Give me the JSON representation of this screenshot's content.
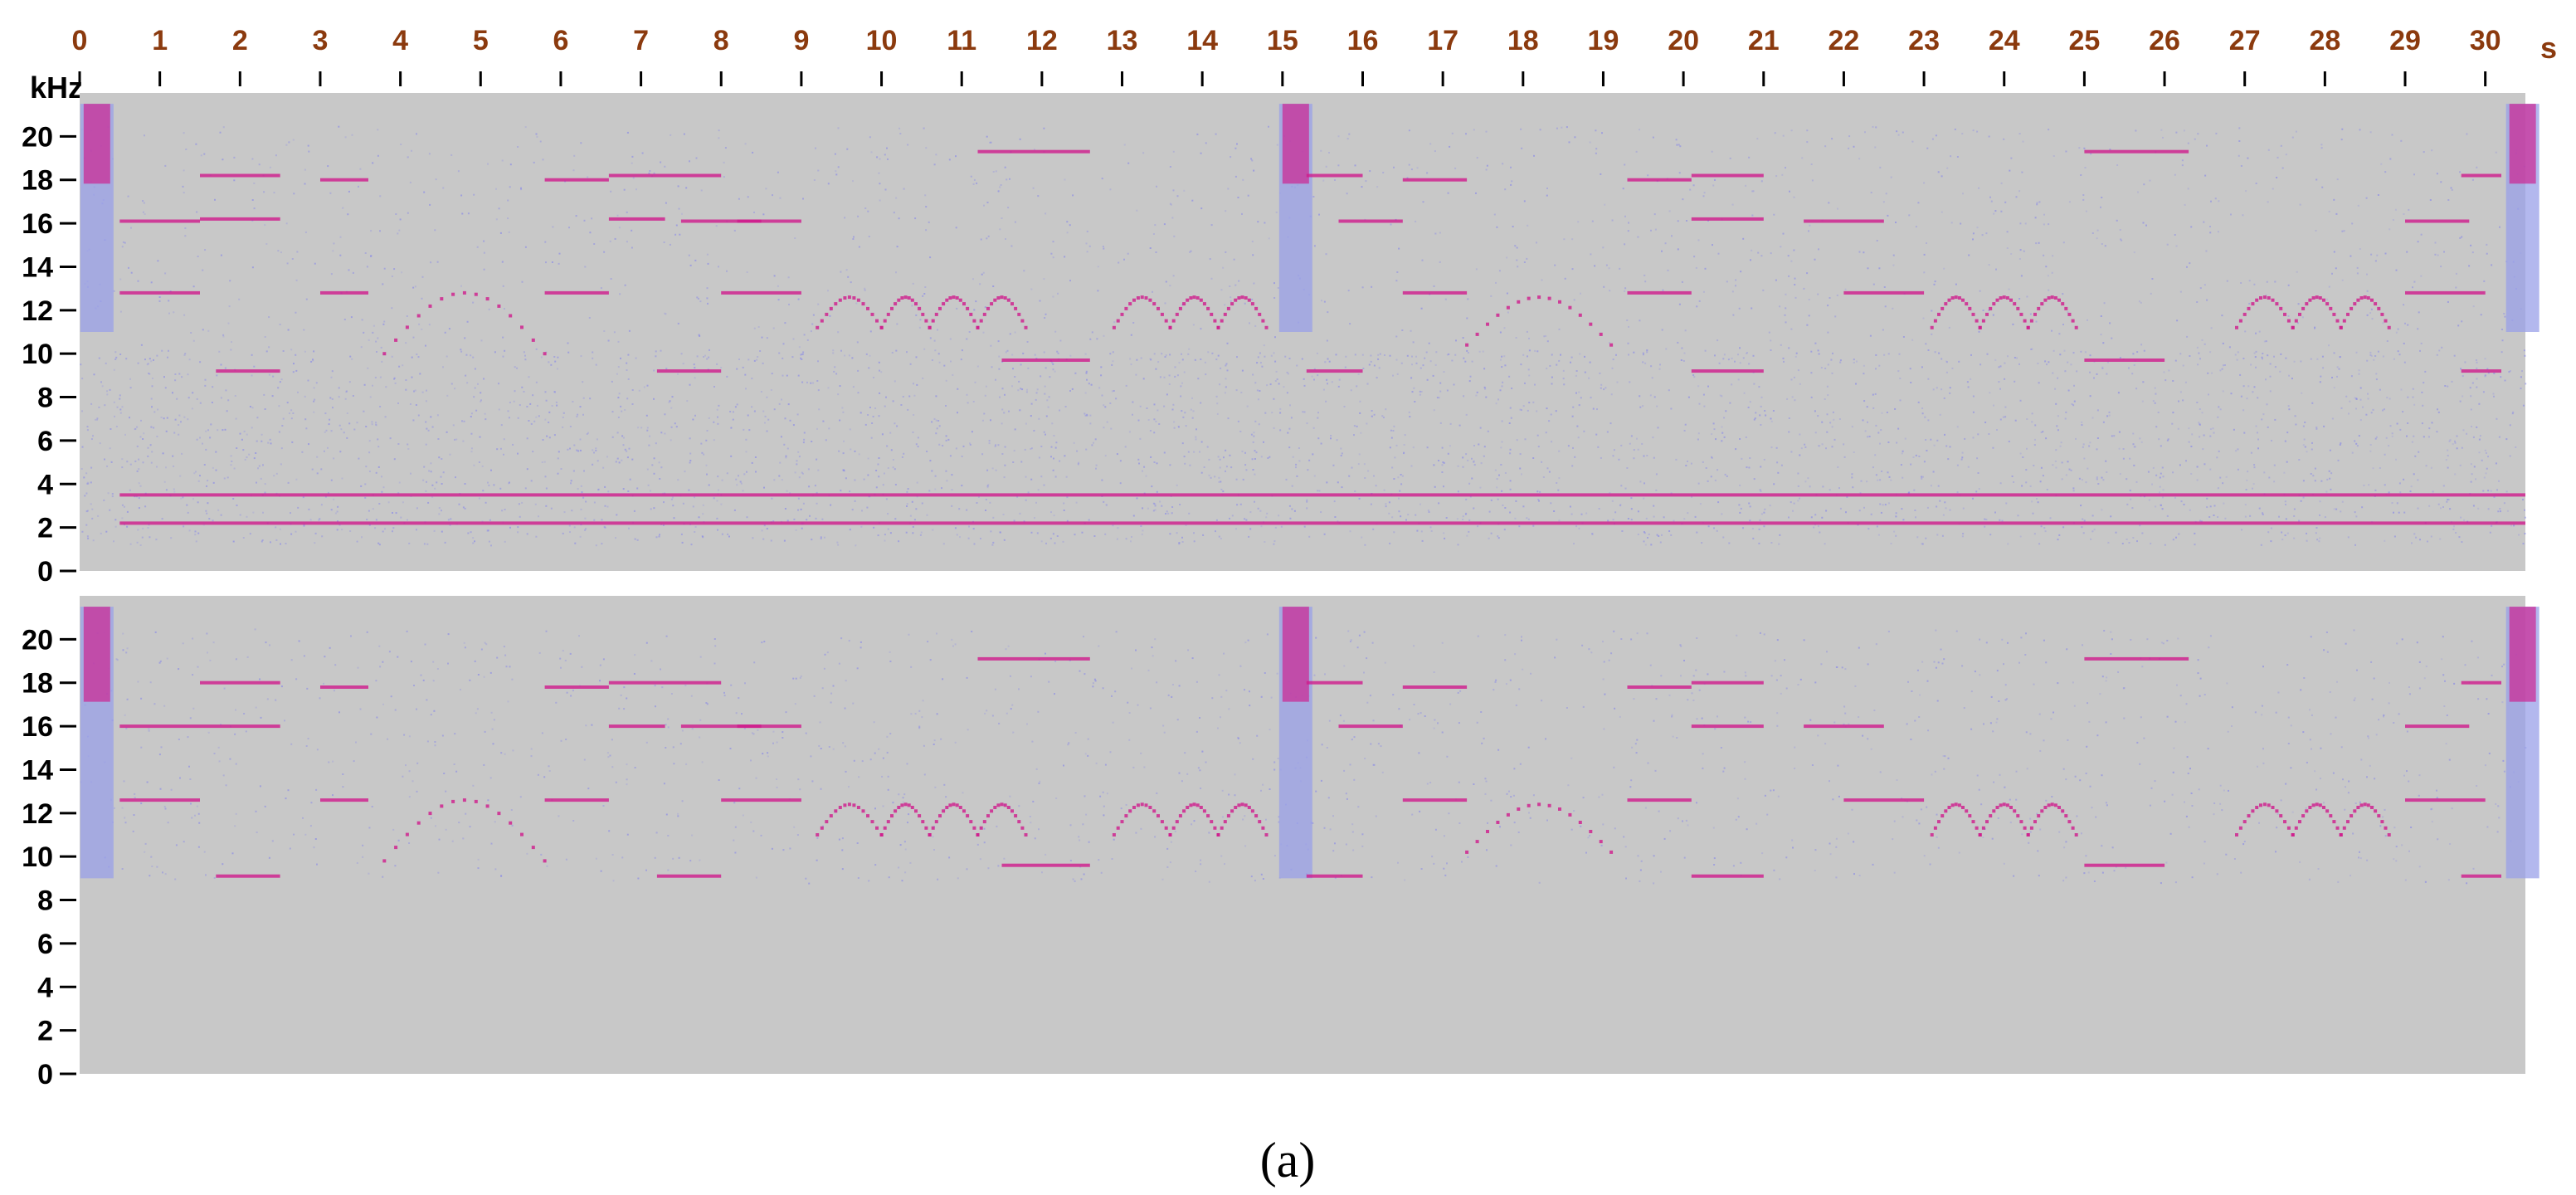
{
  "chart_data": {
    "type": "heatmap",
    "caption": "(a)",
    "x_axis": {
      "unit": "s",
      "range": [
        0,
        30.5
      ],
      "ticks": [
        0,
        1,
        2,
        3,
        4,
        5,
        6,
        7,
        8,
        9,
        10,
        11,
        12,
        13,
        14,
        15,
        16,
        17,
        18,
        19,
        20,
        21,
        22,
        23,
        24,
        25,
        26,
        27,
        28,
        29,
        30
      ],
      "color": "#8b3a0e"
    },
    "y_axis": {
      "unit": "kHz",
      "range": [
        0,
        22
      ],
      "ticks": [
        0,
        2,
        4,
        6,
        8,
        10,
        12,
        14,
        16,
        18,
        20
      ]
    },
    "colors": {
      "background": "#c8c8c8",
      "noise": "#8c8ce6",
      "tone": "#d01a8c"
    },
    "panels": [
      {
        "name": "",
        "noise_bands": [
          {
            "f": [
              9.5,
              20.5
            ],
            "density": 0.35
          },
          {
            "f": [
              1.2,
              10.2
            ],
            "density": 1.0
          }
        ],
        "broadband_pulses": [
          {
            "t": 0.05,
            "f": [
              11,
              21.5
            ]
          },
          {
            "t": 15.0,
            "f": [
              11,
              21.5
            ]
          },
          {
            "t": 30.3,
            "f": [
              11,
              21.5
            ]
          }
        ],
        "tones": [
          {
            "t": [
              0.5,
              1.5
            ],
            "f": 12.8
          },
          {
            "t": [
              0.5,
              1.5
            ],
            "f": 16.1
          },
          {
            "t": [
              1.5,
              2.5
            ],
            "f": 18.2
          },
          {
            "t": [
              1.5,
              2.5
            ],
            "f": 16.2
          },
          {
            "t": [
              1.7,
              2.5
            ],
            "f": 9.2
          },
          {
            "t": [
              3.0,
              3.6
            ],
            "f": 12.8
          },
          {
            "t": [
              3.0,
              3.6
            ],
            "f": 18.0
          },
          {
            "t": [
              5.8,
              6.6
            ],
            "f": 12.8
          },
          {
            "t": [
              5.8,
              6.6
            ],
            "f": 18.0
          },
          {
            "t": [
              6.6,
              7.3
            ],
            "f": 16.2
          },
          {
            "t": [
              6.6,
              8.0
            ],
            "f": 18.2
          },
          {
            "t": [
              7.2,
              8.0
            ],
            "f": 9.2
          },
          {
            "t": [
              7.5,
              8.5
            ],
            "f": 16.1
          },
          {
            "t": [
              8.0,
              9.0
            ],
            "f": 12.8
          },
          {
            "t": [
              8.2,
              9.0
            ],
            "f": 16.1
          },
          {
            "t": [
              11.2,
              12.6
            ],
            "f": 19.3
          },
          {
            "t": [
              11.5,
              12.6
            ],
            "f": 9.7
          },
          {
            "t": [
              15.3,
              16.0
            ],
            "f": 18.2
          },
          {
            "t": [
              15.3,
              16.0
            ],
            "f": 9.2
          },
          {
            "t": [
              15.7,
              16.5
            ],
            "f": 16.1
          },
          {
            "t": [
              16.5,
              17.3
            ],
            "f": 12.8
          },
          {
            "t": [
              16.5,
              17.3
            ],
            "f": 18.0
          },
          {
            "t": [
              19.3,
              20.1
            ],
            "f": 12.8
          },
          {
            "t": [
              19.3,
              20.1
            ],
            "f": 18.0
          },
          {
            "t": [
              20.1,
              21.0
            ],
            "f": 18.2
          },
          {
            "t": [
              20.1,
              21.0
            ],
            "f": 9.2
          },
          {
            "t": [
              20.1,
              21.0
            ],
            "f": 16.2
          },
          {
            "t": [
              21.5,
              22.5
            ],
            "f": 16.1
          },
          {
            "t": [
              22.0,
              23.0
            ],
            "f": 12.8
          },
          {
            "t": [
              25.0,
              26.3
            ],
            "f": 19.3
          },
          {
            "t": [
              25.0,
              26.0
            ],
            "f": 9.7
          },
          {
            "t": [
              29.0,
              30.0
            ],
            "f": 12.8
          },
          {
            "t": [
              29.0,
              29.8
            ],
            "f": 16.1
          },
          {
            "t": [
              29.7,
              30.2
            ],
            "f": 18.2
          },
          {
            "t": [
              29.7,
              30.2
            ],
            "f": 9.2
          },
          {
            "t": [
              0.5,
              30.5
            ],
            "f": 3.5
          },
          {
            "t": [
              0.5,
              30.5
            ],
            "f": 2.2
          }
        ],
        "sweeps": [
          {
            "t": [
              3.8,
              5.8
            ],
            "f_peak": 12.8,
            "f_min": 10.0
          },
          {
            "t": [
              9.2,
              10.0
            ],
            "f_peak": 12.6,
            "f_min": 11.2
          },
          {
            "t": [
              10.0,
              10.6
            ],
            "f_peak": 12.6,
            "f_min": 11.2
          },
          {
            "t": [
              10.6,
              11.2
            ],
            "f_peak": 12.6,
            "f_min": 11.2
          },
          {
            "t": [
              11.2,
              11.8
            ],
            "f_peak": 12.6,
            "f_min": 11.2
          },
          {
            "t": [
              12.9,
              13.6
            ],
            "f_peak": 12.6,
            "f_min": 11.2
          },
          {
            "t": [
              13.6,
              14.2
            ],
            "f_peak": 12.6,
            "f_min": 11.2
          },
          {
            "t": [
              14.2,
              14.8
            ],
            "f_peak": 12.6,
            "f_min": 11.2
          },
          {
            "t": [
              17.3,
              19.1
            ],
            "f_peak": 12.6,
            "f_min": 10.4
          },
          {
            "t": [
              23.1,
              23.7
            ],
            "f_peak": 12.6,
            "f_min": 11.2
          },
          {
            "t": [
              23.7,
              24.3
            ],
            "f_peak": 12.6,
            "f_min": 11.2
          },
          {
            "t": [
              24.3,
              24.9
            ],
            "f_peak": 12.6,
            "f_min": 11.2
          },
          {
            "t": [
              26.9,
              27.6
            ],
            "f_peak": 12.6,
            "f_min": 11.2
          },
          {
            "t": [
              27.6,
              28.2
            ],
            "f_peak": 12.6,
            "f_min": 11.2
          },
          {
            "t": [
              28.2,
              28.8
            ],
            "f_peak": 12.6,
            "f_min": 11.2
          }
        ]
      },
      {
        "name": "",
        "noise_bands": [
          {
            "f": [
              8.8,
              20.5
            ],
            "density": 0.35
          }
        ],
        "broadband_pulses": [
          {
            "t": 0.05,
            "f": [
              9,
              21.5
            ]
          },
          {
            "t": 15.0,
            "f": [
              9,
              21.5
            ]
          },
          {
            "t": 30.3,
            "f": [
              9,
              21.5
            ]
          }
        ],
        "tones": [
          {
            "t": [
              0.5,
              1.5
            ],
            "f": 12.6
          },
          {
            "t": [
              0.5,
              1.5
            ],
            "f": 16.0
          },
          {
            "t": [
              1.5,
              2.5
            ],
            "f": 18.0
          },
          {
            "t": [
              1.5,
              2.5
            ],
            "f": 16.0
          },
          {
            "t": [
              1.7,
              2.5
            ],
            "f": 9.1
          },
          {
            "t": [
              3.0,
              3.6
            ],
            "f": 12.6
          },
          {
            "t": [
              3.0,
              3.6
            ],
            "f": 17.8
          },
          {
            "t": [
              5.8,
              6.6
            ],
            "f": 12.6
          },
          {
            "t": [
              5.8,
              6.6
            ],
            "f": 17.8
          },
          {
            "t": [
              6.6,
              7.3
            ],
            "f": 16.0
          },
          {
            "t": [
              6.6,
              8.0
            ],
            "f": 18.0
          },
          {
            "t": [
              7.2,
              8.0
            ],
            "f": 9.1
          },
          {
            "t": [
              7.5,
              8.5
            ],
            "f": 16.0
          },
          {
            "t": [
              8.0,
              9.0
            ],
            "f": 12.6
          },
          {
            "t": [
              8.2,
              9.0
            ],
            "f": 16.0
          },
          {
            "t": [
              11.2,
              12.6
            ],
            "f": 19.1
          },
          {
            "t": [
              11.5,
              12.6
            ],
            "f": 9.6
          },
          {
            "t": [
              15.3,
              16.0
            ],
            "f": 18.0
          },
          {
            "t": [
              15.3,
              16.0
            ],
            "f": 9.1
          },
          {
            "t": [
              15.7,
              16.5
            ],
            "f": 16.0
          },
          {
            "t": [
              16.5,
              17.3
            ],
            "f": 12.6
          },
          {
            "t": [
              16.5,
              17.3
            ],
            "f": 17.8
          },
          {
            "t": [
              19.3,
              20.1
            ],
            "f": 12.6
          },
          {
            "t": [
              19.3,
              20.1
            ],
            "f": 17.8
          },
          {
            "t": [
              20.1,
              21.0
            ],
            "f": 18.0
          },
          {
            "t": [
              20.1,
              21.0
            ],
            "f": 9.1
          },
          {
            "t": [
              20.1,
              21.0
            ],
            "f": 16.0
          },
          {
            "t": [
              21.5,
              22.5
            ],
            "f": 16.0
          },
          {
            "t": [
              22.0,
              23.0
            ],
            "f": 12.6
          },
          {
            "t": [
              25.0,
              26.3
            ],
            "f": 19.1
          },
          {
            "t": [
              25.0,
              26.0
            ],
            "f": 9.6
          },
          {
            "t": [
              29.0,
              30.0
            ],
            "f": 12.6
          },
          {
            "t": [
              29.0,
              29.8
            ],
            "f": 16.0
          },
          {
            "t": [
              29.7,
              30.2
            ],
            "f": 18.0
          },
          {
            "t": [
              29.7,
              30.2
            ],
            "f": 9.1
          }
        ],
        "sweeps": [
          {
            "t": [
              3.8,
              5.8
            ],
            "f_peak": 12.6,
            "f_min": 9.8
          },
          {
            "t": [
              9.2,
              10.0
            ],
            "f_peak": 12.4,
            "f_min": 11.0
          },
          {
            "t": [
              10.0,
              10.6
            ],
            "f_peak": 12.4,
            "f_min": 11.0
          },
          {
            "t": [
              10.6,
              11.2
            ],
            "f_peak": 12.4,
            "f_min": 11.0
          },
          {
            "t": [
              11.2,
              11.8
            ],
            "f_peak": 12.4,
            "f_min": 11.0
          },
          {
            "t": [
              12.9,
              13.6
            ],
            "f_peak": 12.4,
            "f_min": 11.0
          },
          {
            "t": [
              13.6,
              14.2
            ],
            "f_peak": 12.4,
            "f_min": 11.0
          },
          {
            "t": [
              14.2,
              14.8
            ],
            "f_peak": 12.4,
            "f_min": 11.0
          },
          {
            "t": [
              17.3,
              19.1
            ],
            "f_peak": 12.4,
            "f_min": 10.2
          },
          {
            "t": [
              23.1,
              23.7
            ],
            "f_peak": 12.4,
            "f_min": 11.0
          },
          {
            "t": [
              23.7,
              24.3
            ],
            "f_peak": 12.4,
            "f_min": 11.0
          },
          {
            "t": [
              24.3,
              24.9
            ],
            "f_peak": 12.4,
            "f_min": 11.0
          },
          {
            "t": [
              26.9,
              27.6
            ],
            "f_peak": 12.4,
            "f_min": 11.0
          },
          {
            "t": [
              27.6,
              28.2
            ],
            "f_peak": 12.4,
            "f_min": 11.0
          },
          {
            "t": [
              28.2,
              28.8
            ],
            "f_peak": 12.4,
            "f_min": 11.0
          }
        ]
      }
    ]
  }
}
